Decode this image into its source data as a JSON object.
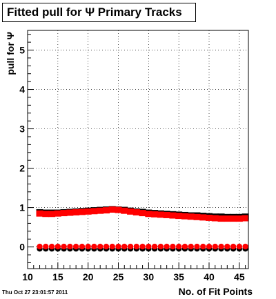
{
  "title": "Fitted pull for Ψ  Primary Tracks",
  "footer_timestamp": "Thu Oct 27 23:01:57 2011",
  "chart_data": {
    "type": "scatter",
    "title": "Fitted pull for Ψ  Primary Tracks",
    "xlabel": "No. of Fit Points",
    "ylabel": "pull for Ψ",
    "xlim": [
      10,
      46.5
    ],
    "ylim": [
      -0.55,
      5.5
    ],
    "grid": true,
    "x_ticks": [
      10,
      15,
      20,
      25,
      30,
      35,
      40,
      45
    ],
    "y_ticks": [
      0,
      1,
      2,
      3,
      4,
      5
    ],
    "series": [
      {
        "color": "#000000",
        "marker": "circle",
        "x": [
          12,
          13,
          14,
          15,
          16,
          17,
          18,
          19,
          20,
          21,
          22,
          23,
          24,
          25,
          26,
          27,
          28,
          29,
          30,
          31,
          32,
          33,
          34,
          35,
          36,
          37,
          38,
          39,
          40,
          41,
          42,
          43,
          44,
          45,
          46
        ],
        "y": [
          -0.01,
          -0.01,
          -0.01,
          -0.01,
          -0.01,
          -0.01,
          -0.01,
          -0.01,
          -0.01,
          -0.01,
          -0.01,
          -0.01,
          -0.01,
          -0.01,
          -0.01,
          -0.01,
          -0.01,
          -0.01,
          -0.01,
          -0.01,
          -0.01,
          -0.01,
          -0.01,
          -0.01,
          -0.01,
          -0.01,
          -0.01,
          -0.01,
          -0.01,
          -0.01,
          -0.01,
          -0.01,
          -0.01,
          -0.01,
          -0.01
        ]
      },
      {
        "color": "#ff0000",
        "marker": "circle",
        "x": [
          12,
          13,
          14,
          15,
          16,
          17,
          18,
          19,
          20,
          21,
          22,
          23,
          24,
          25,
          26,
          27,
          28,
          29,
          30,
          31,
          32,
          33,
          34,
          35,
          36,
          37,
          38,
          39,
          40,
          41,
          42,
          43,
          44,
          45,
          46
        ],
        "y": [
          0.01,
          0.01,
          0.01,
          0.01,
          0.01,
          0.01,
          0.01,
          0.01,
          0.01,
          0.01,
          0.01,
          0.01,
          0.01,
          0.01,
          0.01,
          0.01,
          0.01,
          0.01,
          0.01,
          0.01,
          0.01,
          0.01,
          0.01,
          0.01,
          0.01,
          0.01,
          0.01,
          0.01,
          0.01,
          0.01,
          0.01,
          0.01,
          0.01,
          0.01,
          0.01
        ]
      },
      {
        "color": "#000000",
        "marker": "square",
        "x": [
          12,
          13,
          14,
          15,
          16,
          17,
          18,
          19,
          20,
          21,
          22,
          23,
          24,
          25,
          26,
          27,
          28,
          29,
          30,
          31,
          32,
          33,
          34,
          35,
          36,
          37,
          38,
          39,
          40,
          41,
          42,
          43,
          44,
          45,
          46
        ],
        "y": [
          0.88,
          0.87,
          0.87,
          0.87,
          0.88,
          0.89,
          0.9,
          0.91,
          0.92,
          0.93,
          0.94,
          0.95,
          0.96,
          0.95,
          0.94,
          0.92,
          0.9,
          0.89,
          0.87,
          0.86,
          0.85,
          0.84,
          0.83,
          0.82,
          0.81,
          0.8,
          0.8,
          0.79,
          0.78,
          0.77,
          0.77,
          0.76,
          0.76,
          0.76,
          0.77
        ]
      },
      {
        "color": "#ff0000",
        "marker": "square",
        "x": [
          12,
          13,
          14,
          15,
          16,
          17,
          18,
          19,
          20,
          21,
          22,
          23,
          24,
          25,
          26,
          27,
          28,
          29,
          30,
          31,
          32,
          33,
          34,
          35,
          36,
          37,
          38,
          39,
          40,
          41,
          42,
          43,
          44,
          45,
          46
        ],
        "y": [
          0.85,
          0.84,
          0.84,
          0.85,
          0.86,
          0.87,
          0.88,
          0.89,
          0.9,
          0.91,
          0.92,
          0.93,
          0.95,
          0.94,
          0.92,
          0.9,
          0.88,
          0.86,
          0.84,
          0.83,
          0.82,
          0.81,
          0.8,
          0.79,
          0.78,
          0.77,
          0.76,
          0.75,
          0.74,
          0.73,
          0.72,
          0.72,
          0.72,
          0.72,
          0.73
        ]
      }
    ]
  }
}
